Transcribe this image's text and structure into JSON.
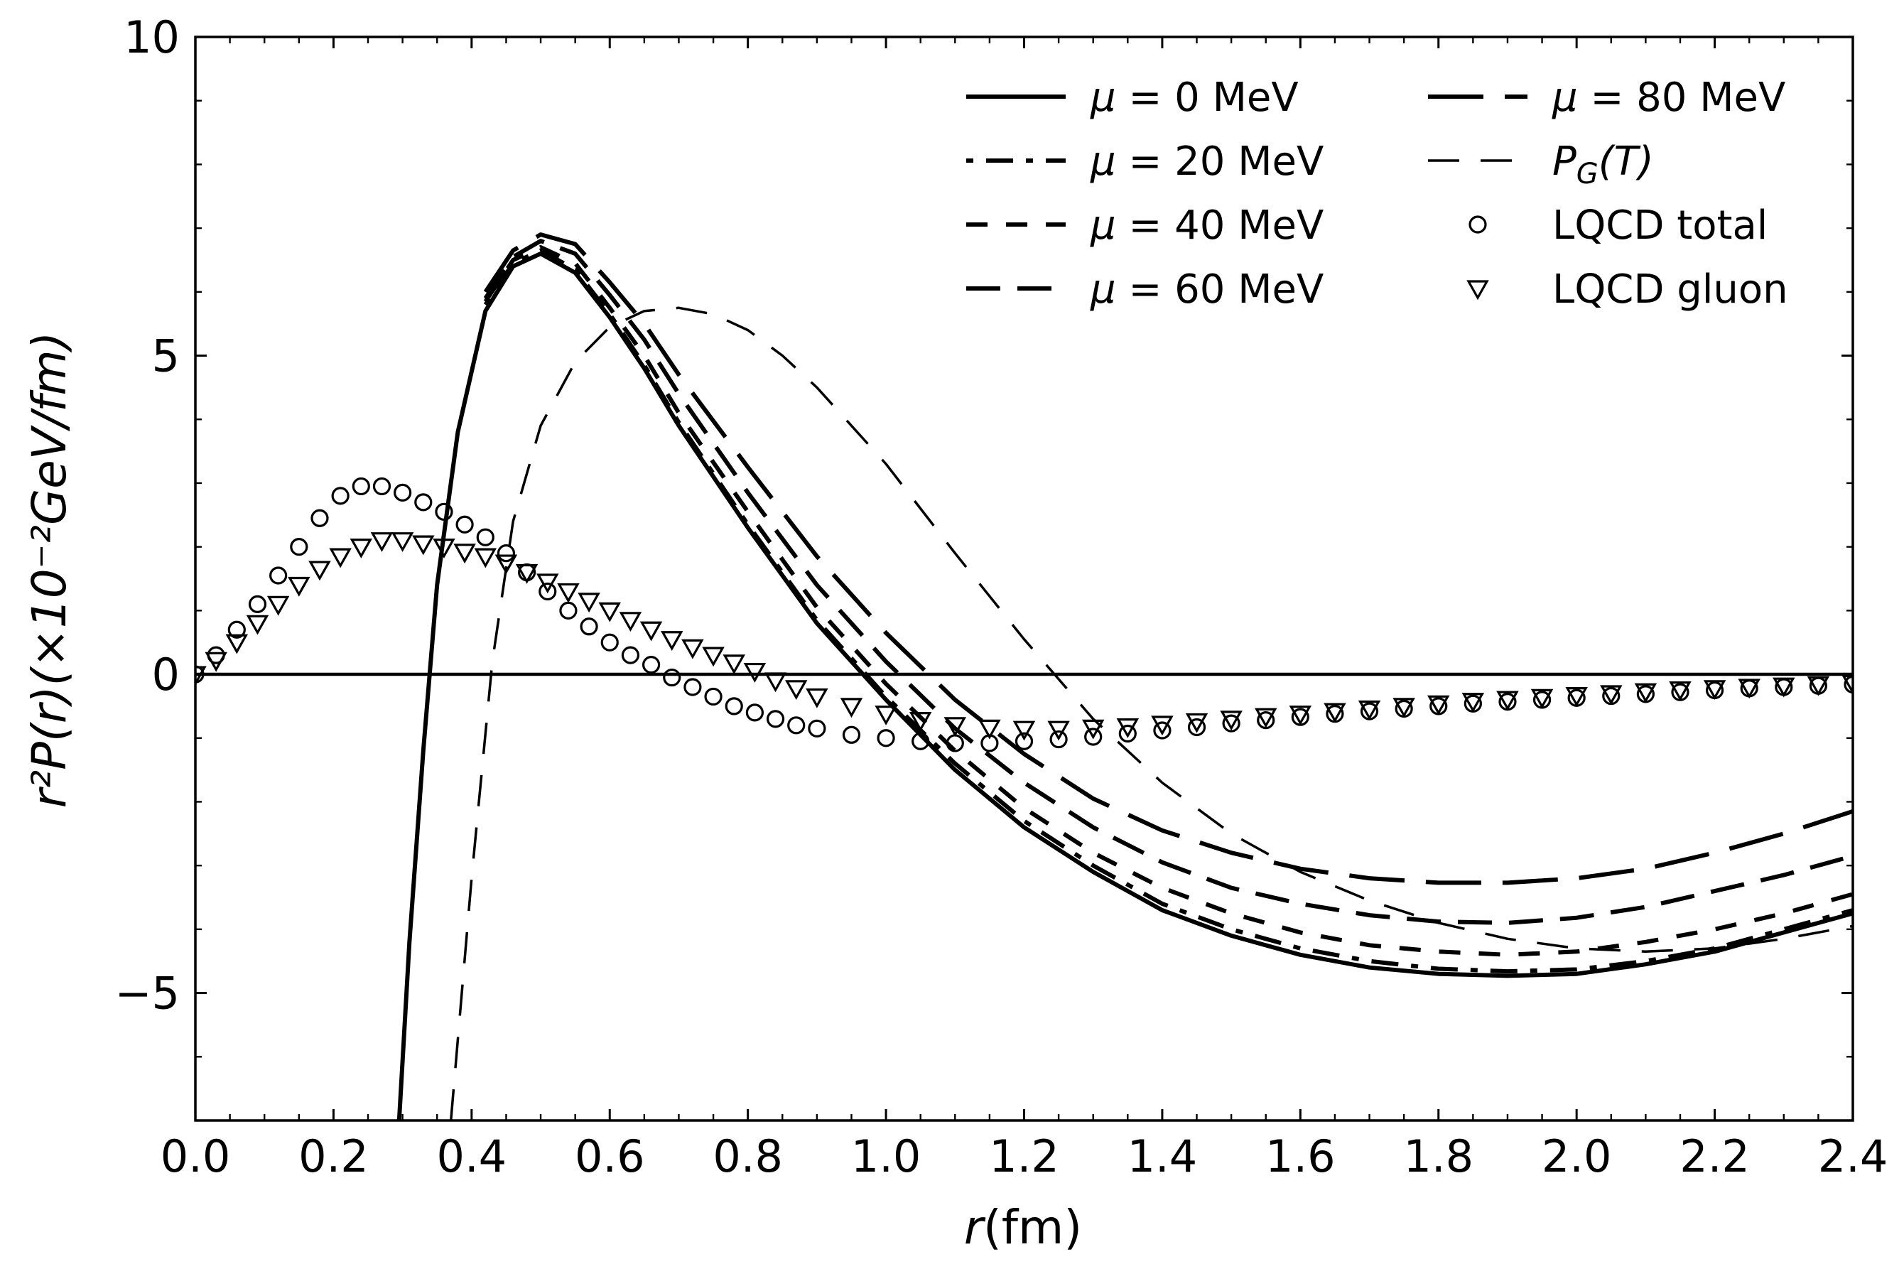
{
  "chart_data": {
    "type": "line",
    "title": "",
    "xlabel_italic": "r",
    "xlabel_rest": "(fm)",
    "ylabel": "r²P(r)(×10⁻²GeV/fm)",
    "xlim": [
      0.0,
      2.4
    ],
    "ylim": [
      -7,
      10
    ],
    "xticks": [
      0.0,
      0.2,
      0.4,
      0.6,
      0.8,
      1.0,
      1.2,
      1.4,
      1.6,
      1.8,
      2.0,
      2.2,
      2.4
    ],
    "xtick_labels": [
      "0.0",
      "0.2",
      "0.4",
      "0.6",
      "0.8",
      "1.0",
      "1.2",
      "1.4",
      "1.6",
      "1.8",
      "2.0",
      "2.2",
      "2.4"
    ],
    "yticks": [
      -5,
      0,
      5,
      10
    ],
    "ytick_labels": [
      "−5",
      "0",
      "5",
      "10"
    ],
    "grid": false,
    "legend_position": "top-right",
    "zero_line": true,
    "series": [
      {
        "name": "μ = 0 MeV",
        "label_var": "μ",
        "label_rest": " = 0 MeV",
        "style": "solid",
        "x": [
          0.295,
          0.31,
          0.33,
          0.35,
          0.38,
          0.42,
          0.46,
          0.5,
          0.55,
          0.6,
          0.65,
          0.7,
          0.8,
          0.9,
          1.0,
          1.1,
          1.2,
          1.3,
          1.4,
          1.5,
          1.6,
          1.7,
          1.8,
          1.9,
          2.0,
          2.1,
          2.2,
          2.3,
          2.4
        ],
        "y": [
          -7.0,
          -4.2,
          -1.2,
          1.4,
          3.8,
          5.7,
          6.4,
          6.6,
          6.3,
          5.6,
          4.8,
          3.9,
          2.3,
          0.8,
          -0.4,
          -1.5,
          -2.4,
          -3.1,
          -3.7,
          -4.1,
          -4.4,
          -4.6,
          -4.7,
          -4.73,
          -4.7,
          -4.55,
          -4.35,
          -4.05,
          -3.75
        ]
      },
      {
        "name": "μ = 20 MeV",
        "label_var": "μ",
        "label_rest": " = 20 MeV",
        "style": "dotdash",
        "x": [
          0.42,
          0.46,
          0.5,
          0.55,
          0.6,
          0.65,
          0.7,
          0.8,
          0.9,
          1.0,
          1.1,
          1.2,
          1.3,
          1.4,
          1.5,
          1.6,
          1.7,
          1.8,
          1.9,
          2.0,
          2.1,
          2.2,
          2.3,
          2.4
        ],
        "y": [
          5.8,
          6.45,
          6.65,
          6.35,
          5.65,
          4.85,
          3.95,
          2.35,
          0.85,
          -0.35,
          -1.4,
          -2.3,
          -3.0,
          -3.6,
          -4.0,
          -4.3,
          -4.5,
          -4.62,
          -4.66,
          -4.63,
          -4.5,
          -4.3,
          -4.0,
          -3.7
        ]
      },
      {
        "name": "μ = 40 MeV",
        "label_var": "μ",
        "label_rest": " = 40 MeV",
        "style": "short-dash",
        "x": [
          0.42,
          0.46,
          0.5,
          0.55,
          0.6,
          0.65,
          0.7,
          0.8,
          0.9,
          1.0,
          1.1,
          1.2,
          1.3,
          1.4,
          1.5,
          1.6,
          1.7,
          1.8,
          1.9,
          2.0,
          2.1,
          2.2,
          2.3,
          2.4
        ],
        "y": [
          5.85,
          6.5,
          6.7,
          6.45,
          5.75,
          5.0,
          4.1,
          2.55,
          1.05,
          -0.15,
          -1.2,
          -2.1,
          -2.8,
          -3.35,
          -3.75,
          -4.05,
          -4.25,
          -4.35,
          -4.4,
          -4.35,
          -4.2,
          -4.0,
          -3.75,
          -3.45
        ]
      },
      {
        "name": "μ = 60 MeV",
        "label_var": "μ",
        "label_rest": " = 60 MeV",
        "style": "medium-dash",
        "x": [
          0.42,
          0.46,
          0.5,
          0.55,
          0.6,
          0.65,
          0.7,
          0.8,
          0.9,
          1.0,
          1.1,
          1.2,
          1.3,
          1.4,
          1.5,
          1.6,
          1.7,
          1.8,
          1.9,
          2.0,
          2.1,
          2.2,
          2.3,
          2.4
        ],
        "y": [
          5.9,
          6.55,
          6.8,
          6.6,
          5.95,
          5.25,
          4.4,
          2.85,
          1.4,
          0.2,
          -0.85,
          -1.7,
          -2.4,
          -2.95,
          -3.35,
          -3.6,
          -3.78,
          -3.88,
          -3.9,
          -3.82,
          -3.65,
          -3.4,
          -3.15,
          -2.85
        ]
      },
      {
        "name": "μ = 80 MeV",
        "label_var": "μ",
        "label_rest": " = 80 MeV",
        "style": "long-dash",
        "x": [
          0.42,
          0.46,
          0.5,
          0.55,
          0.6,
          0.65,
          0.7,
          0.8,
          0.9,
          1.0,
          1.1,
          1.2,
          1.3,
          1.4,
          1.5,
          1.6,
          1.7,
          1.8,
          1.9,
          2.0,
          2.1,
          2.2,
          2.3,
          2.4
        ],
        "y": [
          6.0,
          6.65,
          6.9,
          6.75,
          6.15,
          5.5,
          4.7,
          3.25,
          1.85,
          0.65,
          -0.4,
          -1.25,
          -1.95,
          -2.45,
          -2.8,
          -3.05,
          -3.2,
          -3.27,
          -3.27,
          -3.2,
          -3.05,
          -2.8,
          -2.5,
          -2.15
        ]
      },
      {
        "name": "P_G(T)",
        "label_var": "P",
        "label_sub": "G",
        "label_rest": "(T)",
        "style": "thin-dash",
        "x": [
          0.37,
          0.4,
          0.43,
          0.46,
          0.5,
          0.55,
          0.6,
          0.65,
          0.7,
          0.75,
          0.8,
          0.85,
          0.9,
          1.0,
          1.1,
          1.2,
          1.3,
          1.4,
          1.5,
          1.6,
          1.7,
          1.8,
          1.9,
          2.0,
          2.1,
          2.2,
          2.3,
          2.4
        ],
        "y": [
          -7.0,
          -3.2,
          0.2,
          2.4,
          3.9,
          4.9,
          5.45,
          5.7,
          5.75,
          5.65,
          5.4,
          5.0,
          4.5,
          3.3,
          1.9,
          0.55,
          -0.7,
          -1.7,
          -2.5,
          -3.1,
          -3.55,
          -3.9,
          -4.15,
          -4.3,
          -4.35,
          -4.3,
          -4.15,
          -3.95
        ]
      },
      {
        "name": "LQCD total",
        "label_var": "",
        "label_rest": "LQCD total",
        "style": "circle",
        "x": [
          0.0,
          0.03,
          0.06,
          0.09,
          0.12,
          0.15,
          0.18,
          0.21,
          0.24,
          0.27,
          0.3,
          0.33,
          0.36,
          0.39,
          0.42,
          0.45,
          0.48,
          0.51,
          0.54,
          0.57,
          0.6,
          0.63,
          0.66,
          0.69,
          0.72,
          0.75,
          0.78,
          0.81,
          0.84,
          0.87,
          0.9,
          0.95,
          1.0,
          1.05,
          1.1,
          1.15,
          1.2,
          1.25,
          1.3,
          1.35,
          1.4,
          1.45,
          1.5,
          1.55,
          1.6,
          1.65,
          1.7,
          1.75,
          1.8,
          1.85,
          1.9,
          1.95,
          2.0,
          2.05,
          2.1,
          2.15,
          2.2,
          2.25,
          2.3,
          2.35,
          2.4
        ],
        "y": [
          0.0,
          0.3,
          0.7,
          1.1,
          1.55,
          2.0,
          2.45,
          2.8,
          2.95,
          2.95,
          2.85,
          2.7,
          2.55,
          2.35,
          2.15,
          1.9,
          1.6,
          1.3,
          1.0,
          0.75,
          0.5,
          0.3,
          0.15,
          -0.05,
          -0.2,
          -0.35,
          -0.5,
          -0.6,
          -0.7,
          -0.8,
          -0.85,
          -0.95,
          -1.0,
          -1.05,
          -1.08,
          -1.08,
          -1.05,
          -1.02,
          -0.98,
          -0.93,
          -0.88,
          -0.83,
          -0.77,
          -0.72,
          -0.67,
          -0.62,
          -0.58,
          -0.54,
          -0.5,
          -0.46,
          -0.43,
          -0.4,
          -0.37,
          -0.34,
          -0.31,
          -0.28,
          -0.25,
          -0.22,
          -0.2,
          -0.18,
          -0.16
        ]
      },
      {
        "name": "LQCD gluon",
        "label_var": "",
        "label_rest": "LQCD gluon",
        "style": "triangle",
        "x": [
          0.0,
          0.03,
          0.06,
          0.09,
          0.12,
          0.15,
          0.18,
          0.21,
          0.24,
          0.27,
          0.3,
          0.33,
          0.36,
          0.39,
          0.42,
          0.45,
          0.48,
          0.51,
          0.54,
          0.57,
          0.6,
          0.63,
          0.66,
          0.69,
          0.72,
          0.75,
          0.78,
          0.81,
          0.84,
          0.87,
          0.9,
          0.95,
          1.0,
          1.05,
          1.1,
          1.15,
          1.2,
          1.25,
          1.3,
          1.35,
          1.4,
          1.45,
          1.5,
          1.55,
          1.6,
          1.65,
          1.7,
          1.75,
          1.8,
          1.85,
          1.9,
          1.95,
          2.0,
          2.05,
          2.1,
          2.15,
          2.2,
          2.25,
          2.3,
          2.35,
          2.4
        ],
        "y": [
          0.0,
          0.22,
          0.5,
          0.8,
          1.1,
          1.4,
          1.65,
          1.85,
          2.0,
          2.1,
          2.1,
          2.05,
          2.0,
          1.92,
          1.85,
          1.75,
          1.6,
          1.45,
          1.3,
          1.15,
          1.0,
          0.85,
          0.7,
          0.55,
          0.42,
          0.3,
          0.18,
          0.05,
          -0.1,
          -0.22,
          -0.35,
          -0.5,
          -0.62,
          -0.72,
          -0.8,
          -0.84,
          -0.86,
          -0.86,
          -0.84,
          -0.82,
          -0.78,
          -0.74,
          -0.7,
          -0.66,
          -0.62,
          -0.58,
          -0.54,
          -0.5,
          -0.46,
          -0.42,
          -0.39,
          -0.36,
          -0.33,
          -0.3,
          -0.27,
          -0.24,
          -0.22,
          -0.2,
          -0.18,
          -0.16,
          -0.14
        ]
      }
    ]
  }
}
